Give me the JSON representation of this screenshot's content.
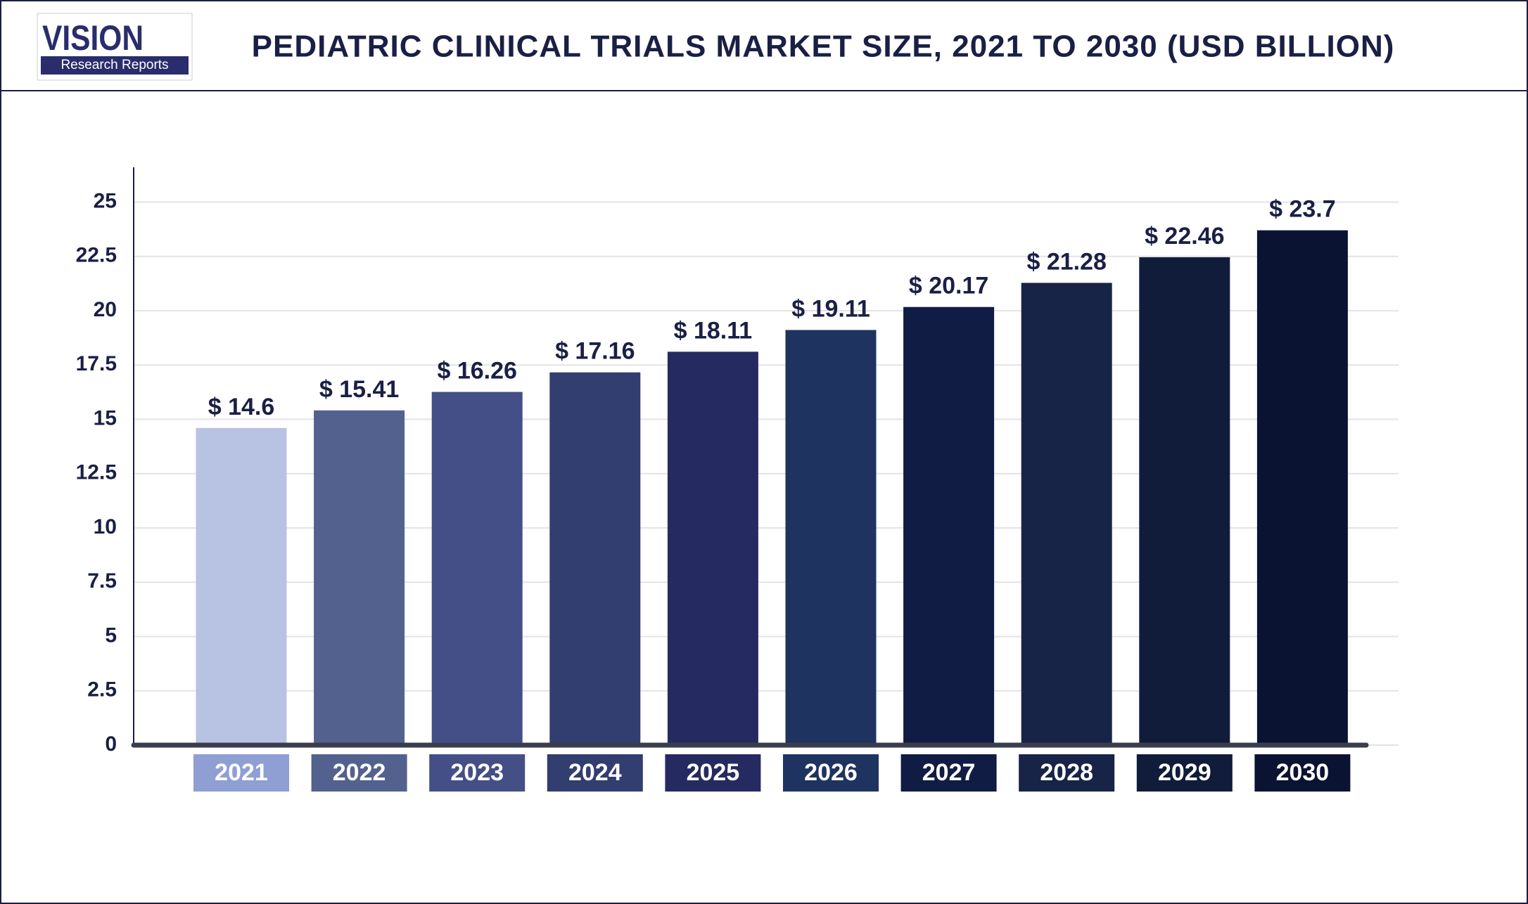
{
  "logo": {
    "name": "VISION",
    "tagline": "Research Reports"
  },
  "chart_data": {
    "type": "bar",
    "title": "PEDIATRIC CLINICAL TRIALS MARKET SIZE, 2021 TO 2030 (USD BILLION)",
    "categories": [
      "2021",
      "2022",
      "2023",
      "2024",
      "2025",
      "2026",
      "2027",
      "2028",
      "2029",
      "2030"
    ],
    "values": [
      14.6,
      15.41,
      16.26,
      17.16,
      18.11,
      19.11,
      20.17,
      21.28,
      22.46,
      23.7
    ],
    "value_labels": [
      "$ 14.6",
      "$ 15.41",
      "$ 16.26",
      "$ 17.16",
      "$ 18.11",
      "$ 19.11",
      "$ 20.17",
      "$ 21.28",
      "$ 22.46",
      "$ 23.7"
    ],
    "colors": [
      "#b8c3e3",
      "#53618e",
      "#434f86",
      "#323d70",
      "#252b60",
      "#1f3360",
      "#111c45",
      "#172448",
      "#101c3a",
      "#0b1333"
    ],
    "category_colors": [
      "#8f9fd4",
      "#53618e",
      "#434f86",
      "#323d70",
      "#252b60",
      "#1f3360",
      "#111c45",
      "#172448",
      "#101c3a",
      "#0b1333"
    ],
    "ylim": [
      0,
      26.6
    ],
    "yticks": [
      0,
      2.5,
      5,
      7.5,
      10,
      12.5,
      15,
      17.5,
      20,
      22.5,
      25
    ],
    "grid": true
  }
}
